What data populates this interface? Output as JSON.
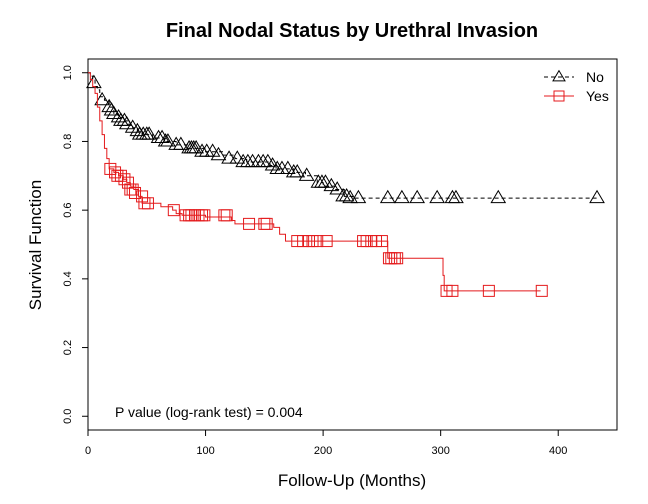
{
  "chart_data": {
    "type": "line",
    "title": "Final Nodal Status by Urethral Invasion",
    "xlabel": "Follow-Up (Months)",
    "ylabel": "Survival Function",
    "xlim": [
      0,
      450
    ],
    "ylim": [
      -0.04,
      1.04
    ],
    "x_ticks": [
      0,
      100,
      200,
      300,
      400
    ],
    "x_tick_labels": [
      "0",
      "100",
      "200",
      "300",
      "400"
    ],
    "y_ticks": [
      0.0,
      0.2,
      0.4,
      0.6,
      0.8,
      1.0
    ],
    "y_tick_labels": [
      "0.0",
      "0.2",
      "0.4",
      "0.6",
      "0.8",
      "1.0"
    ],
    "legend_position": "top-right",
    "annotation": "P value (log-rank test) =  0.004",
    "series": [
      {
        "name": "No",
        "color": "#000000",
        "line_style": "dashed",
        "marker": "triangle",
        "steps": [
          [
            0,
            1.0
          ],
          [
            2,
            0.99
          ],
          [
            4,
            0.98
          ],
          [
            6,
            0.96
          ],
          [
            8,
            0.95
          ],
          [
            10,
            0.93
          ],
          [
            14,
            0.92
          ],
          [
            18,
            0.9
          ],
          [
            22,
            0.88
          ],
          [
            26,
            0.87
          ],
          [
            30,
            0.86
          ],
          [
            34,
            0.85
          ],
          [
            38,
            0.84
          ],
          [
            42,
            0.83
          ],
          [
            46,
            0.82
          ],
          [
            55,
            0.81
          ],
          [
            65,
            0.8
          ],
          [
            75,
            0.79
          ],
          [
            85,
            0.78
          ],
          [
            100,
            0.77
          ],
          [
            115,
            0.76
          ],
          [
            125,
            0.75
          ],
          [
            135,
            0.74
          ],
          [
            155,
            0.73
          ],
          [
            160,
            0.72
          ],
          [
            175,
            0.71
          ],
          [
            185,
            0.7
          ],
          [
            195,
            0.68
          ],
          [
            200,
            0.67
          ],
          [
            210,
            0.66
          ],
          [
            218,
            0.64
          ],
          [
            225,
            0.635
          ],
          [
            435,
            0.635
          ]
        ],
        "censored": [
          [
            5,
            0.97
          ],
          [
            12,
            0.92
          ],
          [
            18,
            0.9
          ],
          [
            20,
            0.89
          ],
          [
            22,
            0.88
          ],
          [
            26,
            0.87
          ],
          [
            28,
            0.86
          ],
          [
            31,
            0.86
          ],
          [
            33,
            0.85
          ],
          [
            38,
            0.84
          ],
          [
            42,
            0.83
          ],
          [
            44,
            0.82
          ],
          [
            47,
            0.82
          ],
          [
            50,
            0.82
          ],
          [
            52,
            0.82
          ],
          [
            60,
            0.81
          ],
          [
            63,
            0.81
          ],
          [
            66,
            0.8
          ],
          [
            68,
            0.8
          ],
          [
            75,
            0.79
          ],
          [
            79,
            0.79
          ],
          [
            86,
            0.78
          ],
          [
            88,
            0.78
          ],
          [
            90,
            0.78
          ],
          [
            92,
            0.78
          ],
          [
            97,
            0.77
          ],
          [
            101,
            0.77
          ],
          [
            106,
            0.77
          ],
          [
            111,
            0.76
          ],
          [
            120,
            0.75
          ],
          [
            127,
            0.75
          ],
          [
            132,
            0.74
          ],
          [
            136,
            0.74
          ],
          [
            140,
            0.74
          ],
          [
            145,
            0.74
          ],
          [
            149,
            0.74
          ],
          [
            153,
            0.74
          ],
          [
            157,
            0.73
          ],
          [
            161,
            0.72
          ],
          [
            165,
            0.72
          ],
          [
            170,
            0.72
          ],
          [
            175,
            0.71
          ],
          [
            178,
            0.71
          ],
          [
            186,
            0.7
          ],
          [
            196,
            0.68
          ],
          [
            199,
            0.68
          ],
          [
            202,
            0.68
          ],
          [
            207,
            0.67
          ],
          [
            212,
            0.66
          ],
          [
            217,
            0.64
          ],
          [
            220,
            0.64
          ],
          [
            223,
            0.635
          ],
          [
            230,
            0.635
          ],
          [
            255,
            0.635
          ],
          [
            267,
            0.635
          ],
          [
            280,
            0.635
          ],
          [
            297,
            0.635
          ],
          [
            310,
            0.635
          ],
          [
            313,
            0.635
          ],
          [
            349,
            0.635
          ],
          [
            433,
            0.635
          ]
        ]
      },
      {
        "name": "Yes",
        "color": "#e41a1c",
        "line_style": "solid",
        "marker": "square",
        "steps": [
          [
            0,
            1.0
          ],
          [
            2,
            0.98
          ],
          [
            4,
            0.96
          ],
          [
            6,
            0.94
          ],
          [
            8,
            0.9
          ],
          [
            10,
            0.86
          ],
          [
            12,
            0.82
          ],
          [
            14,
            0.78
          ],
          [
            16,
            0.75
          ],
          [
            18,
            0.72
          ],
          [
            22,
            0.71
          ],
          [
            26,
            0.7
          ],
          [
            30,
            0.69
          ],
          [
            33,
            0.68
          ],
          [
            36,
            0.67
          ],
          [
            39,
            0.66
          ],
          [
            43,
            0.64
          ],
          [
            46,
            0.62
          ],
          [
            62,
            0.61
          ],
          [
            72,
            0.6
          ],
          [
            75,
            0.59
          ],
          [
            80,
            0.585
          ],
          [
            100,
            0.58
          ],
          [
            122,
            0.57
          ],
          [
            125,
            0.56
          ],
          [
            158,
            0.55
          ],
          [
            163,
            0.53
          ],
          [
            168,
            0.51
          ],
          [
            245,
            0.51
          ],
          [
            250,
            0.51
          ],
          [
            255,
            0.46
          ],
          [
            300,
            0.46
          ],
          [
            302,
            0.41
          ],
          [
            303,
            0.365
          ],
          [
            385,
            0.365
          ]
        ],
        "censored": [
          [
            19,
            0.72
          ],
          [
            23,
            0.71
          ],
          [
            25,
            0.7
          ],
          [
            28,
            0.7
          ],
          [
            31,
            0.69
          ],
          [
            34,
            0.68
          ],
          [
            36,
            0.66
          ],
          [
            38,
            0.66
          ],
          [
            40,
            0.65
          ],
          [
            46,
            0.64
          ],
          [
            48,
            0.62
          ],
          [
            51,
            0.62
          ],
          [
            73,
            0.6
          ],
          [
            83,
            0.585
          ],
          [
            86,
            0.585
          ],
          [
            88,
            0.585
          ],
          [
            91,
            0.585
          ],
          [
            94,
            0.585
          ],
          [
            97,
            0.585
          ],
          [
            99,
            0.585
          ],
          [
            116,
            0.585
          ],
          [
            118,
            0.585
          ],
          [
            137,
            0.56
          ],
          [
            150,
            0.56
          ],
          [
            152,
            0.56
          ],
          [
            178,
            0.51
          ],
          [
            183,
            0.51
          ],
          [
            188,
            0.51
          ],
          [
            191,
            0.51
          ],
          [
            195,
            0.51
          ],
          [
            203,
            0.51
          ],
          [
            234,
            0.51
          ],
          [
            237,
            0.51
          ],
          [
            241,
            0.51
          ],
          [
            245,
            0.51
          ],
          [
            250,
            0.51
          ],
          [
            256,
            0.46
          ],
          [
            258,
            0.46
          ],
          [
            261,
            0.46
          ],
          [
            263,
            0.46
          ],
          [
            305,
            0.365
          ],
          [
            310,
            0.365
          ],
          [
            341,
            0.365
          ],
          [
            386,
            0.365
          ]
        ]
      }
    ]
  }
}
